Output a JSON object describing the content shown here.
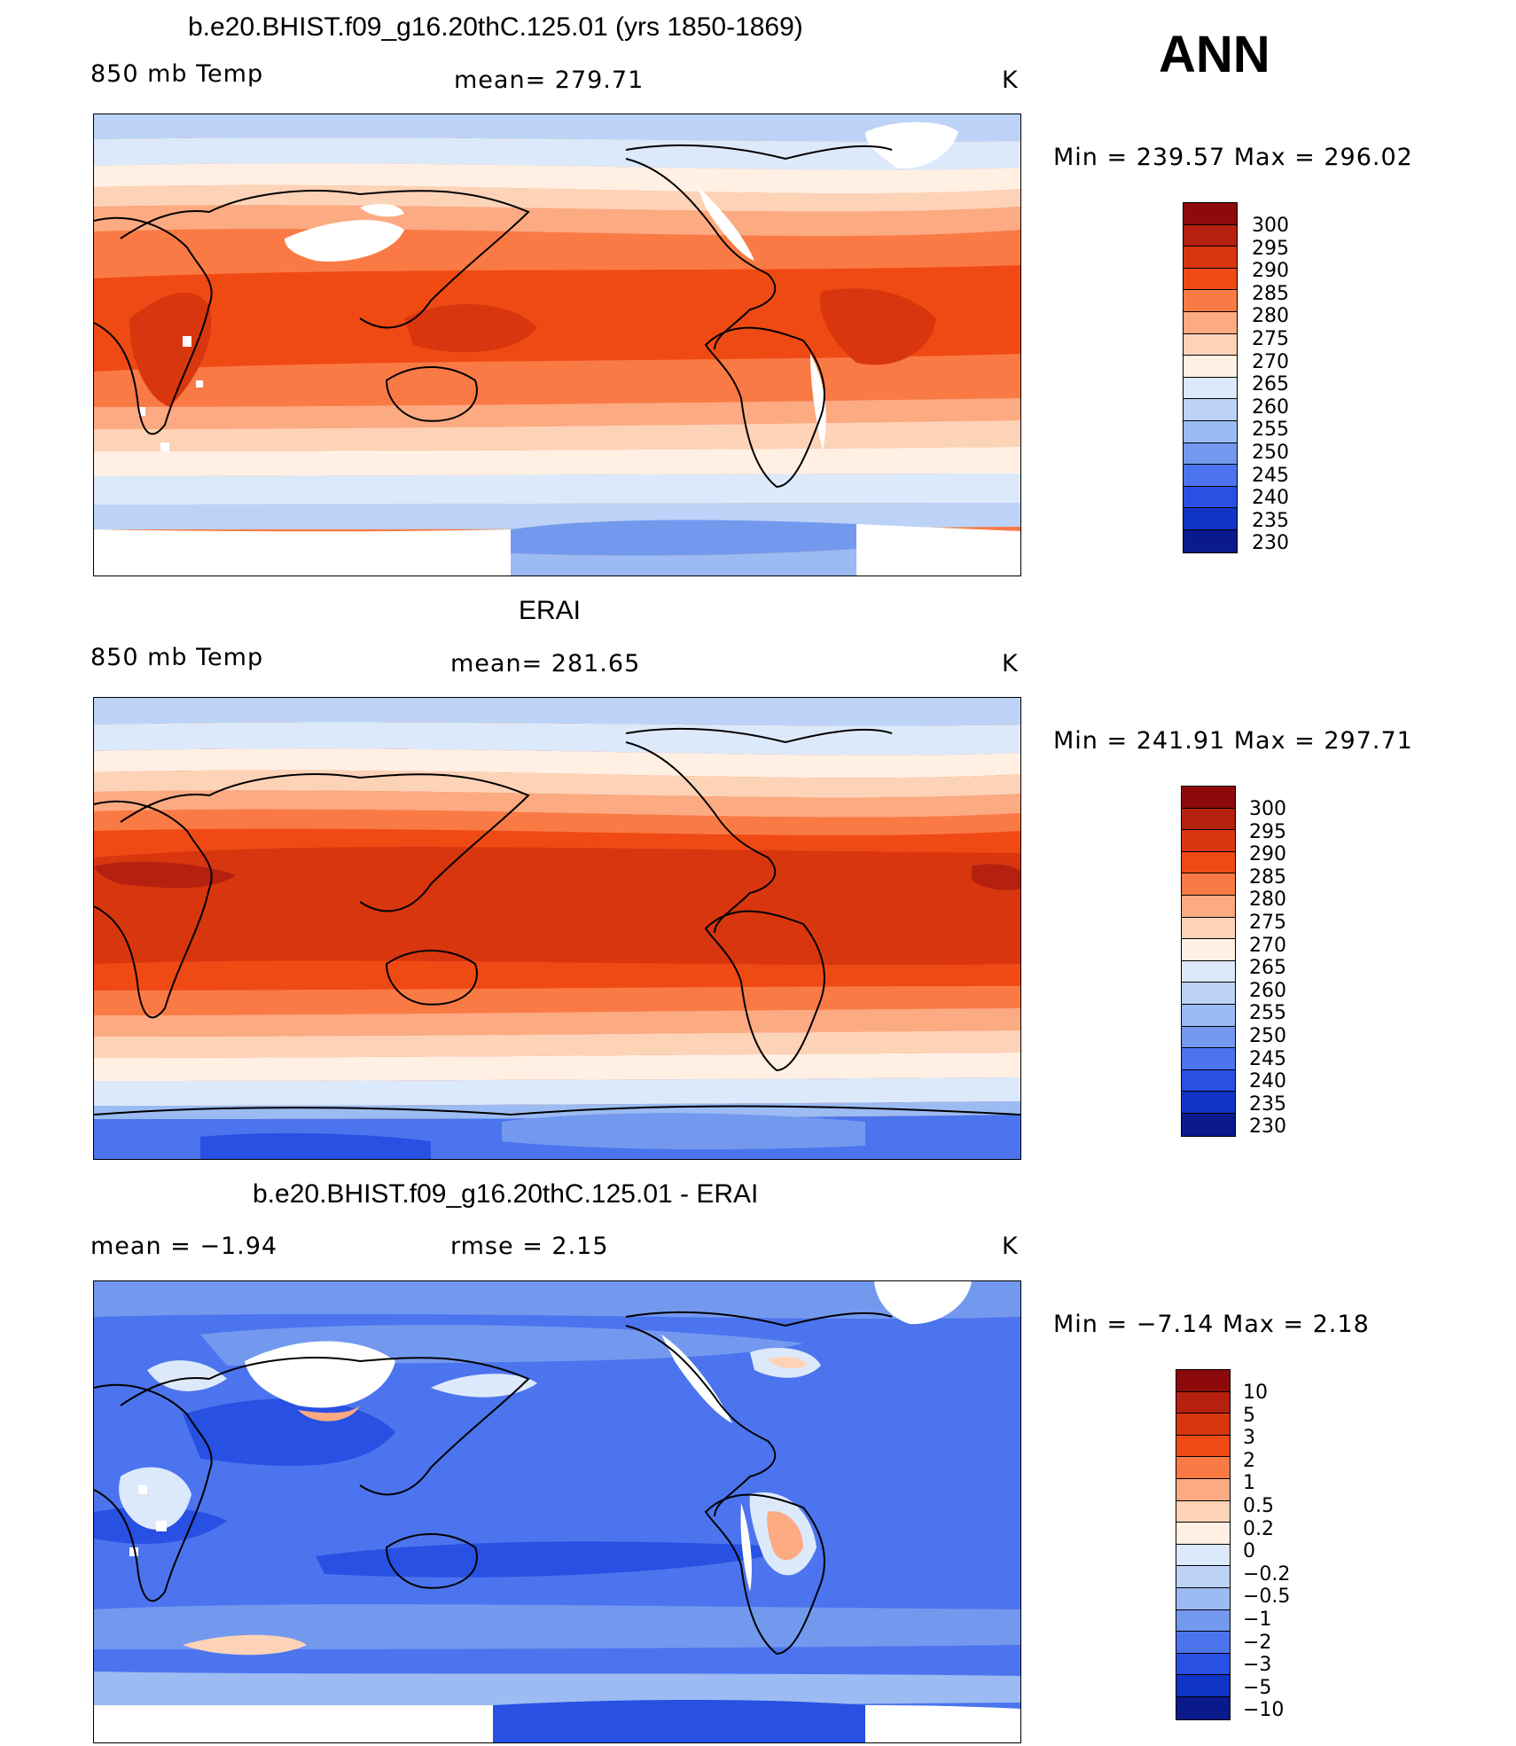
{
  "season": "ANN",
  "panels": [
    {
      "id": "model",
      "title": "b.e20.BHIST.f09_g16.20thC.125.01 (yrs 1850-1869)",
      "variable": "850 mb Temp",
      "stat": "mean=  279.71",
      "units": "K",
      "minmax": "Min  =  239.57  Max  =  296.02",
      "colorbar_labels": [
        "300",
        "295",
        "290",
        "285",
        "280",
        "275",
        "270",
        "265",
        "260",
        "255",
        "250",
        "245",
        "240",
        "235",
        "230"
      ],
      "colorbar_colors": [
        "#8c0a0a",
        "#b5200f",
        "#d8360f",
        "#f04a14",
        "#fa7a45",
        "#fcaa82",
        "#fdd3b8",
        "#fff0e3",
        "#dce9fb",
        "#bcd3f7",
        "#9bbbf2",
        "#7399ef",
        "#4c74ee",
        "#2850e2",
        "#1034c6",
        "#0a1a8c"
      ]
    },
    {
      "id": "obs",
      "title": "ERAI",
      "variable": "850 mb Temp",
      "stat": "mean=  281.65",
      "units": "K",
      "minmax": "Min  =  241.91  Max  =  297.71",
      "colorbar_labels": [
        "300",
        "295",
        "290",
        "285",
        "280",
        "275",
        "270",
        "265",
        "260",
        "255",
        "250",
        "245",
        "240",
        "235",
        "230"
      ],
      "colorbar_colors": [
        "#8c0a0a",
        "#b5200f",
        "#d8360f",
        "#f04a14",
        "#fa7a45",
        "#fcaa82",
        "#fdd3b8",
        "#fff0e3",
        "#dce9fb",
        "#bcd3f7",
        "#9bbbf2",
        "#7399ef",
        "#4c74ee",
        "#2850e2",
        "#1034c6",
        "#0a1a8c"
      ]
    },
    {
      "id": "diff",
      "title": "b.e20.BHIST.f09_g16.20thC.125.01 - ERAI",
      "variable": "mean  =    −1.94",
      "stat": "rmse  =     2.15",
      "units": "K",
      "minmax": "Min  =    −7.14  Max  =      2.18",
      "colorbar_labels": [
        "10",
        "5",
        "3",
        "2",
        "1",
        "0.5",
        "0.2",
        "0",
        "−0.2",
        "−0.5",
        "−1",
        "−2",
        "−3",
        "−5",
        "−10"
      ],
      "colorbar_colors": [
        "#8c0a0a",
        "#b5200f",
        "#d8360f",
        "#f04a14",
        "#fa7a45",
        "#fcaa82",
        "#fdd3b8",
        "#fff0e3",
        "#dce9fb",
        "#bcd3f7",
        "#9bbbf2",
        "#7399ef",
        "#4c74ee",
        "#2850e2",
        "#1034c6",
        "#0a1a8c"
      ]
    }
  ]
}
